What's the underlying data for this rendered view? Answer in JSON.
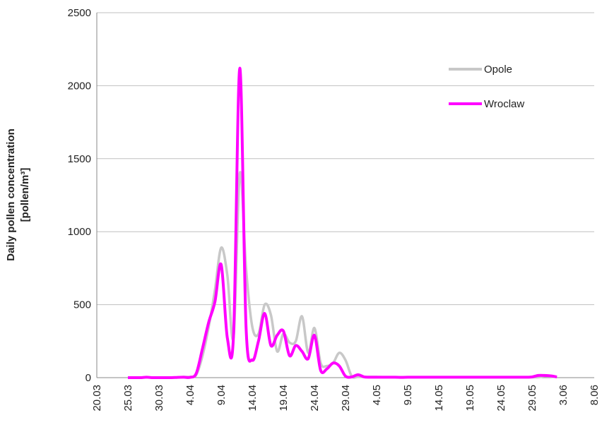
{
  "chart_data": {
    "type": "line",
    "y_label": [
      "Daily pollen concentration",
      "[pollen/m³]"
    ],
    "categories": [
      "20.03",
      null,
      null,
      null,
      null,
      "25.03",
      null,
      null,
      null,
      null,
      "30.03",
      null,
      null,
      null,
      null,
      "4.04",
      null,
      null,
      null,
      null,
      "9.04",
      null,
      null,
      null,
      null,
      "14.04",
      null,
      null,
      null,
      null,
      "19.04",
      null,
      null,
      null,
      null,
      "24.04",
      null,
      null,
      null,
      null,
      "29.04",
      null,
      null,
      null,
      null,
      "4.05",
      null,
      null,
      null,
      null,
      "9.05",
      null,
      null,
      null,
      null,
      "14.05",
      null,
      null,
      null,
      null,
      "19.05",
      null,
      null,
      null,
      null,
      "24.05",
      null,
      null,
      null,
      null,
      "29.05",
      null,
      null,
      null,
      null,
      "3.06",
      null,
      null,
      null,
      null,
      "8.06"
    ],
    "series": [
      {
        "name": "Opole",
        "color": "#c8c8c8",
        "values": [
          null,
          null,
          null,
          null,
          null,
          0,
          0,
          0,
          2,
          0,
          0,
          0,
          0,
          2,
          5,
          5,
          20,
          150,
          350,
          600,
          890,
          700,
          280,
          1400,
          750,
          350,
          300,
          500,
          430,
          180,
          300,
          240,
          250,
          420,
          170,
          340,
          100,
          80,
          100,
          170,
          120,
          10,
          5,
          5,
          5,
          5,
          3,
          3,
          3,
          3,
          3,
          3,
          3,
          3,
          3,
          3,
          3,
          3,
          3,
          3,
          3,
          3,
          3,
          3,
          3,
          3,
          3,
          3,
          3,
          3,
          3,
          3,
          10,
          8,
          5,
          null,
          null,
          null,
          null,
          null,
          null
        ]
      },
      {
        "name": "Wroclaw",
        "color": "#ff00ff",
        "values": [
          null,
          null,
          null,
          null,
          null,
          0,
          0,
          0,
          3,
          0,
          0,
          0,
          0,
          2,
          3,
          2,
          30,
          200,
          380,
          520,
          775,
          270,
          300,
          2120,
          350,
          120,
          250,
          440,
          220,
          290,
          320,
          150,
          220,
          180,
          130,
          290,
          50,
          60,
          100,
          80,
          10,
          5,
          20,
          5,
          3,
          3,
          3,
          3,
          3,
          2,
          3,
          3,
          3,
          3,
          3,
          3,
          3,
          3,
          3,
          3,
          3,
          3,
          3,
          3,
          3,
          3,
          3,
          3,
          3,
          3,
          5,
          15,
          15,
          12,
          5,
          null,
          null,
          null,
          null,
          null,
          null
        ]
      }
    ],
    "ylim": [
      0,
      2500
    ],
    "yticks": [
      0,
      500,
      1000,
      1500,
      2000,
      2500
    ],
    "grid": true,
    "legend": "top-right"
  }
}
